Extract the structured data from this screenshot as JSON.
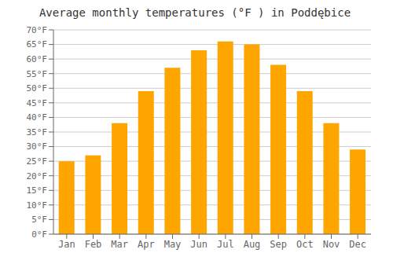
{
  "chart_data": {
    "type": "bar",
    "title": "Average monthly temperatures (°F ) in Poddębice",
    "categories": [
      "Jan",
      "Feb",
      "Mar",
      "Apr",
      "May",
      "Jun",
      "Jul",
      "Aug",
      "Sep",
      "Oct",
      "Nov",
      "Dec"
    ],
    "values": [
      25,
      27,
      38,
      49,
      57,
      63,
      66,
      65,
      58,
      49,
      38,
      29
    ],
    "color": "#FFA500",
    "ylim": [
      0,
      70
    ],
    "yticks": [
      {
        "value": 0,
        "label": "0°F"
      },
      {
        "value": 5,
        "label": "5°F"
      },
      {
        "value": 10,
        "label": "10°F"
      },
      {
        "value": 15,
        "label": "15°F"
      },
      {
        "value": 20,
        "label": "20°F"
      },
      {
        "value": 25,
        "label": "25°F"
      },
      {
        "value": 30,
        "label": "30°F"
      },
      {
        "value": 35,
        "label": "35°F"
      },
      {
        "value": 40,
        "label": "40°F"
      },
      {
        "value": 45,
        "label": "45°F"
      },
      {
        "value": 50,
        "label": "50°F"
      },
      {
        "value": 55,
        "label": "55°F"
      },
      {
        "value": 60,
        "label": "60°F"
      },
      {
        "value": 65,
        "label": "65°F"
      },
      {
        "value": 70,
        "label": "70°F"
      }
    ],
    "grid": true
  }
}
